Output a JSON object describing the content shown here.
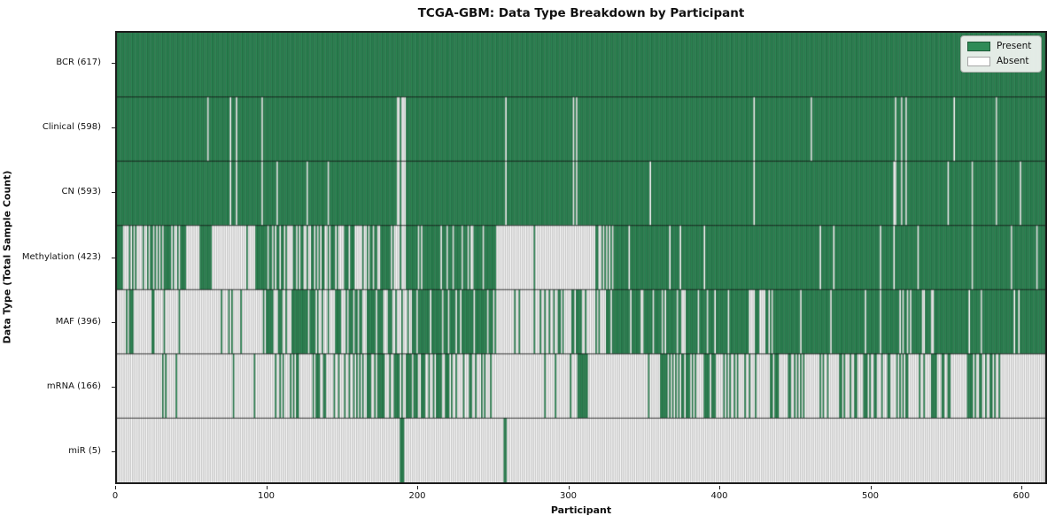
{
  "figure": {
    "title": "TCGA-GBM: Data Type Breakdown by Participant",
    "xlabel": "Participant",
    "ylabel": "Data Type (Total Sample Count)"
  },
  "legend": {
    "items": [
      {
        "label": "Present",
        "color": "#2e8b57"
      },
      {
        "label": "Absent",
        "color": "#ffffff"
      }
    ]
  },
  "chart_data": {
    "type": "heatmap",
    "title": "TCGA-GBM: Data Type Breakdown by Participant",
    "xlabel": "Participant",
    "ylabel": "Data Type (Total Sample Count)",
    "n_participants": 617,
    "xlim": [
      0,
      617
    ],
    "x_ticks": [
      0,
      100,
      200,
      300,
      400,
      500,
      600
    ],
    "legend_entries": [
      "Present",
      "Absent"
    ],
    "legend_position": "upper right",
    "grid": false,
    "colors": {
      "present_fill": "#2e8b57",
      "absent_fill": "#ffffff",
      "cell_edge_overlay": "rgba(0,0,0,0.35)",
      "row_separator": "rgba(0,0,0,0.75)",
      "plot_border": "#1c1c1c",
      "background": "#ffffff"
    },
    "rows": [
      {
        "name": "BCR",
        "label": "BCR (617)",
        "total": 617,
        "fill": "all_present"
      },
      {
        "name": "Clinical",
        "label": "Clinical (598)",
        "total": 598,
        "absent_indices": [
          60,
          75,
          79,
          96,
          186,
          187,
          189,
          190,
          191,
          258,
          303,
          305,
          423,
          461,
          517,
          521,
          524,
          556,
          584
        ]
      },
      {
        "name": "CN",
        "label": "CN (593)",
        "total": 593,
        "absent_indices": [
          75,
          79,
          96,
          106,
          126,
          140,
          186,
          187,
          189,
          190,
          191,
          258,
          303,
          305,
          354,
          423,
          516,
          517,
          521,
          524,
          552,
          568,
          584,
          600
        ]
      },
      {
        "name": "Methylation",
        "label": "Methylation (423)",
        "total": 423,
        "present_segments": [
          [
            0,
            4,
            1.0
          ],
          [
            4,
            55,
            0.45
          ],
          [
            55,
            63,
            0.95
          ],
          [
            63,
            92,
            0.12
          ],
          [
            92,
            100,
            1.0
          ],
          [
            100,
            140,
            0.5
          ],
          [
            140,
            185,
            0.55
          ],
          [
            185,
            192,
            0.3
          ],
          [
            192,
            252,
            0.82
          ],
          [
            252,
            316,
            0.05
          ],
          [
            316,
            330,
            0.5
          ],
          [
            330,
            420,
            0.93
          ],
          [
            420,
            617,
            0.98
          ]
        ]
      },
      {
        "name": "MAF",
        "label": "MAF (396)",
        "total": 396,
        "present_segments": [
          [
            0,
            95,
            0.12
          ],
          [
            95,
            130,
            0.6
          ],
          [
            130,
            160,
            0.5
          ],
          [
            160,
            200,
            0.55
          ],
          [
            200,
            250,
            0.92
          ],
          [
            250,
            293,
            0.15
          ],
          [
            293,
            330,
            0.6
          ],
          [
            330,
            420,
            0.85
          ],
          [
            420,
            435,
            0.45
          ],
          [
            435,
            505,
            0.92
          ],
          [
            505,
            545,
            0.65
          ],
          [
            545,
            617,
            0.97
          ]
        ]
      },
      {
        "name": "mRNA",
        "label": "mRNA (166)",
        "total": 166,
        "present_segments": [
          [
            0,
            24,
            0.0
          ],
          [
            24,
            34,
            0.2
          ],
          [
            34,
            90,
            0.02
          ],
          [
            90,
            140,
            0.38
          ],
          [
            140,
            183,
            0.32
          ],
          [
            183,
            198,
            0.85
          ],
          [
            198,
            240,
            0.62
          ],
          [
            240,
            280,
            0.08
          ],
          [
            280,
            305,
            0.15
          ],
          [
            305,
            313,
            0.85
          ],
          [
            313,
            360,
            0.12
          ],
          [
            360,
            412,
            0.42
          ],
          [
            412,
            420,
            0.15
          ],
          [
            420,
            588,
            0.33
          ],
          [
            588,
            617,
            0.02
          ]
        ]
      },
      {
        "name": "miR",
        "label": "miR (5)",
        "total": 5,
        "present_indices": [
          188,
          189,
          190,
          257,
          258
        ]
      }
    ]
  }
}
